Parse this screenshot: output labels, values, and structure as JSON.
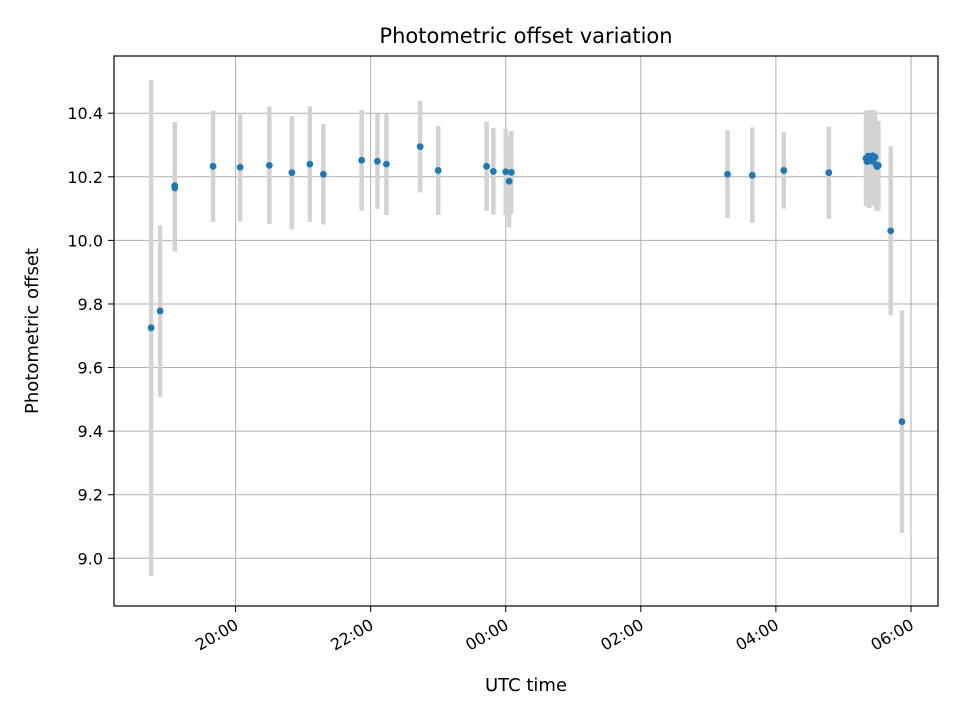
{
  "chart_data": {
    "type": "scatter",
    "title": "Photometric offset variation",
    "xlabel": "UTC time",
    "ylabel": "Photometric offset",
    "x_axis_kind": "time",
    "xlim": [
      "18:12",
      "06:24"
    ],
    "ylim": [
      8.85,
      10.58
    ],
    "grid": true,
    "x_ticks": [
      "20:00",
      "22:00",
      "00:00",
      "02:00",
      "04:00",
      "06:00"
    ],
    "y_ticks": [
      9.0,
      9.2,
      9.4,
      9.6,
      9.8,
      10.0,
      10.2,
      10.4
    ],
    "y_tick_labels": [
      "9.0",
      "9.2",
      "9.4",
      "9.6",
      "9.8",
      "10.0",
      "10.2",
      "10.4"
    ],
    "colors": {
      "point": "#1f77b4",
      "errorbar": "#d3d3d3",
      "grid": "#b0b0b0"
    },
    "series": [
      {
        "points": [
          {
            "x": "18:45",
            "y": 9.725,
            "err": 0.78
          },
          {
            "x": "18:53",
            "y": 9.778,
            "err": 0.27
          },
          {
            "x": "19:06",
            "y": 10.165,
            "err": 0.2
          },
          {
            "x": "19:06",
            "y": 10.172,
            "err": 0.2
          },
          {
            "x": "19:40",
            "y": 10.233,
            "err": 0.175
          },
          {
            "x": "20:04",
            "y": 10.23,
            "err": 0.17
          },
          {
            "x": "20:30",
            "y": 10.236,
            "err": 0.185
          },
          {
            "x": "20:50",
            "y": 10.213,
            "err": 0.178
          },
          {
            "x": "21:06",
            "y": 10.24,
            "err": 0.182
          },
          {
            "x": "21:18",
            "y": 10.208,
            "err": 0.158
          },
          {
            "x": "21:52",
            "y": 10.252,
            "err": 0.158
          },
          {
            "x": "22:06",
            "y": 10.249,
            "err": 0.15
          },
          {
            "x": "22:14",
            "y": 10.24,
            "err": 0.16
          },
          {
            "x": "22:44",
            "y": 10.295,
            "err": 0.144
          },
          {
            "x": "23:00",
            "y": 10.22,
            "err": 0.14
          },
          {
            "x": "23:43",
            "y": 10.233,
            "err": 0.14
          },
          {
            "x": "23:49",
            "y": 10.217,
            "err": 0.136
          },
          {
            "x": "00:00",
            "y": 10.216,
            "err": 0.135
          },
          {
            "x": "00:03",
            "y": 10.186,
            "err": 0.145
          },
          {
            "x": "00:05",
            "y": 10.214,
            "err": 0.13
          },
          {
            "x": "03:17",
            "y": 10.208,
            "err": 0.138
          },
          {
            "x": "03:39",
            "y": 10.205,
            "err": 0.15
          },
          {
            "x": "04:07",
            "y": 10.22,
            "err": 0.12
          },
          {
            "x": "04:47",
            "y": 10.213,
            "err": 0.145
          },
          {
            "x": "05:20",
            "y": 10.258,
            "err": 0.15
          },
          {
            "x": "05:21",
            "y": 10.248,
            "err": 0.14
          },
          {
            "x": "05:22",
            "y": 10.265,
            "err": 0.145
          },
          {
            "x": "05:23",
            "y": 10.252,
            "err": 0.15
          },
          {
            "x": "05:24",
            "y": 10.262,
            "err": 0.148
          },
          {
            "x": "05:25",
            "y": 10.25,
            "err": 0.14
          },
          {
            "x": "05:26",
            "y": 10.266,
            "err": 0.145
          },
          {
            "x": "05:27",
            "y": 10.258,
            "err": 0.15
          },
          {
            "x": "05:28",
            "y": 10.262,
            "err": 0.145
          },
          {
            "x": "05:29",
            "y": 10.238,
            "err": 0.14
          },
          {
            "x": "05:30",
            "y": 10.232,
            "err": 0.14
          },
          {
            "x": "05:31",
            "y": 10.236,
            "err": 0.14
          },
          {
            "x": "05:42",
            "y": 10.03,
            "err": 0.266
          },
          {
            "x": "05:52",
            "y": 9.43,
            "err": 0.35
          }
        ]
      }
    ]
  }
}
